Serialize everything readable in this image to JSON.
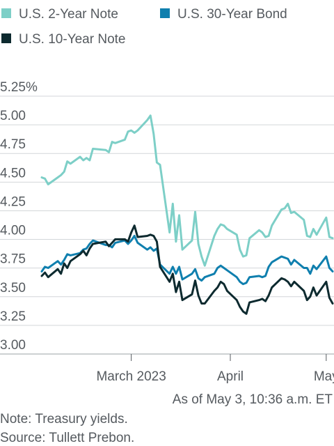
{
  "chart_data": {
    "type": "line",
    "title": "",
    "xlabel": "",
    "ylabel": "",
    "ylim": [
      3.0,
      5.25
    ],
    "yticks": [
      3.0,
      3.25,
      3.5,
      3.75,
      4.0,
      4.25,
      4.5,
      4.75,
      5.0,
      5.25
    ],
    "ytick_labels": [
      "3.00",
      "3.25",
      "3.50",
      "3.75",
      "4.00",
      "4.25",
      "4.50",
      "4.75",
      "5.00",
      "5.25%"
    ],
    "xlim": [
      "2023-02-01",
      "2023-05-03"
    ],
    "xticks": [
      {
        "date": "2023-03-01",
        "label": "March 2023"
      },
      {
        "date": "2023-04-01",
        "label": "April"
      },
      {
        "date": "2023-05-01",
        "label": "May"
      }
    ],
    "grid": true,
    "legend_position": "top",
    "series": [
      {
        "name": "U.S. 2-Year Note",
        "color": "#7dcfc7",
        "x": [
          "2023-02-01",
          "2023-02-02",
          "2023-02-03",
          "2023-02-06",
          "2023-02-07",
          "2023-02-08",
          "2023-02-09",
          "2023-02-10",
          "2023-02-13",
          "2023-02-14",
          "2023-02-15",
          "2023-02-16",
          "2023-02-17",
          "2023-02-21",
          "2023-02-22",
          "2023-02-23",
          "2023-02-24",
          "2023-02-27",
          "2023-02-28",
          "2023-03-01",
          "2023-03-02",
          "2023-03-03",
          "2023-03-06",
          "2023-03-07",
          "2023-03-08",
          "2023-03-09",
          "2023-03-10",
          "2023-03-13",
          "2023-03-14",
          "2023-03-15",
          "2023-03-16",
          "2023-03-17",
          "2023-03-20",
          "2023-03-21",
          "2023-03-22",
          "2023-03-23",
          "2023-03-24",
          "2023-03-27",
          "2023-03-28",
          "2023-03-29",
          "2023-03-30",
          "2023-03-31",
          "2023-04-03",
          "2023-04-04",
          "2023-04-05",
          "2023-04-06",
          "2023-04-07",
          "2023-04-10",
          "2023-04-11",
          "2023-04-12",
          "2023-04-13",
          "2023-04-14",
          "2023-04-17",
          "2023-04-18",
          "2023-04-19",
          "2023-04-20",
          "2023-04-21",
          "2023-04-24",
          "2023-04-25",
          "2023-04-26",
          "2023-04-27",
          "2023-04-28",
          "2023-05-01",
          "2023-05-02",
          "2023-05-03"
        ],
        "values": [
          4.48,
          4.47,
          4.42,
          4.48,
          4.5,
          4.53,
          4.62,
          4.6,
          4.66,
          4.63,
          4.65,
          4.63,
          4.73,
          4.72,
          4.7,
          4.79,
          4.78,
          4.81,
          4.88,
          4.89,
          4.87,
          4.89,
          4.98,
          5.02,
          4.86,
          4.61,
          4.59,
          4.0,
          4.25,
          3.92,
          4.15,
          3.85,
          3.93,
          4.18,
          3.9,
          3.79,
          3.71,
          3.97,
          4.03,
          4.07,
          4.06,
          4.03,
          3.98,
          3.85,
          3.79,
          3.8,
          3.95,
          4.02,
          4.0,
          3.96,
          3.97,
          4.06,
          4.2,
          4.21,
          4.25,
          4.17,
          4.18,
          4.11,
          3.97,
          3.96,
          4.03,
          3.98,
          4.13,
          3.96,
          3.95
        ]
      },
      {
        "name": "U.S. 30-Year Bond",
        "color": "#0f7fae",
        "x": [
          "2023-02-01",
          "2023-02-02",
          "2023-02-03",
          "2023-02-06",
          "2023-02-07",
          "2023-02-08",
          "2023-02-09",
          "2023-02-10",
          "2023-02-13",
          "2023-02-14",
          "2023-02-15",
          "2023-02-16",
          "2023-02-17",
          "2023-02-21",
          "2023-02-22",
          "2023-02-23",
          "2023-02-24",
          "2023-02-27",
          "2023-02-28",
          "2023-03-01",
          "2023-03-02",
          "2023-03-03",
          "2023-03-06",
          "2023-03-07",
          "2023-03-08",
          "2023-03-09",
          "2023-03-10",
          "2023-03-13",
          "2023-03-14",
          "2023-03-15",
          "2023-03-16",
          "2023-03-17",
          "2023-03-20",
          "2023-03-21",
          "2023-03-22",
          "2023-03-23",
          "2023-03-24",
          "2023-03-27",
          "2023-03-28",
          "2023-03-29",
          "2023-03-30",
          "2023-03-31",
          "2023-04-03",
          "2023-04-04",
          "2023-04-05",
          "2023-04-06",
          "2023-04-07",
          "2023-04-10",
          "2023-04-11",
          "2023-04-12",
          "2023-04-13",
          "2023-04-14",
          "2023-04-17",
          "2023-04-18",
          "2023-04-19",
          "2023-04-20",
          "2023-04-21",
          "2023-04-24",
          "2023-04-25",
          "2023-04-26",
          "2023-04-27",
          "2023-04-28",
          "2023-05-01",
          "2023-05-02",
          "2023-05-03"
        ],
        "values": [
          3.66,
          3.7,
          3.69,
          3.75,
          3.72,
          3.76,
          3.81,
          3.8,
          3.82,
          3.85,
          3.86,
          3.9,
          3.93,
          3.89,
          3.89,
          3.87,
          3.91,
          3.93,
          3.9,
          3.93,
          3.97,
          3.91,
          3.85,
          3.87,
          3.84,
          3.86,
          3.72,
          3.64,
          3.7,
          3.64,
          3.7,
          3.59,
          3.64,
          3.68,
          3.6,
          3.58,
          3.61,
          3.64,
          3.69,
          3.71,
          3.69,
          3.67,
          3.61,
          3.57,
          3.55,
          3.56,
          3.61,
          3.62,
          3.61,
          3.62,
          3.7,
          3.74,
          3.79,
          3.78,
          3.77,
          3.72,
          3.76,
          3.69,
          3.69,
          3.64,
          3.71,
          3.68,
          3.79,
          3.69,
          3.66
        ]
      },
      {
        "name": "U.S. 10-Year Note",
        "color": "#0d2a2f",
        "x": [
          "2023-02-01",
          "2023-02-02",
          "2023-02-03",
          "2023-02-06",
          "2023-02-07",
          "2023-02-08",
          "2023-02-09",
          "2023-02-10",
          "2023-02-13",
          "2023-02-14",
          "2023-02-15",
          "2023-02-16",
          "2023-02-17",
          "2023-02-21",
          "2023-02-22",
          "2023-02-23",
          "2023-02-24",
          "2023-02-27",
          "2023-02-28",
          "2023-03-01",
          "2023-03-02",
          "2023-03-03",
          "2023-03-06",
          "2023-03-07",
          "2023-03-08",
          "2023-03-09",
          "2023-03-10",
          "2023-03-13",
          "2023-03-14",
          "2023-03-15",
          "2023-03-16",
          "2023-03-17",
          "2023-03-20",
          "2023-03-21",
          "2023-03-22",
          "2023-03-23",
          "2023-03-24",
          "2023-03-27",
          "2023-03-28",
          "2023-03-29",
          "2023-03-30",
          "2023-03-31",
          "2023-04-03",
          "2023-04-04",
          "2023-04-05",
          "2023-04-06",
          "2023-04-07",
          "2023-04-10",
          "2023-04-11",
          "2023-04-12",
          "2023-04-13",
          "2023-04-14",
          "2023-04-17",
          "2023-04-18",
          "2023-04-19",
          "2023-04-20",
          "2023-04-21",
          "2023-04-24",
          "2023-04-25",
          "2023-04-26",
          "2023-04-27",
          "2023-04-28",
          "2023-05-01",
          "2023-05-02",
          "2023-05-03"
        ],
        "values": [
          3.62,
          3.65,
          3.61,
          3.68,
          3.64,
          3.73,
          3.69,
          3.75,
          3.81,
          3.84,
          3.8,
          3.86,
          3.9,
          3.92,
          3.88,
          3.91,
          3.94,
          3.94,
          3.92,
          4.0,
          4.06,
          3.96,
          3.97,
          3.98,
          3.97,
          3.92,
          3.7,
          3.57,
          3.64,
          3.48,
          3.57,
          3.41,
          3.46,
          3.58,
          3.45,
          3.38,
          3.38,
          3.49,
          3.52,
          3.57,
          3.55,
          3.49,
          3.41,
          3.35,
          3.31,
          3.29,
          3.39,
          3.41,
          3.42,
          3.4,
          3.45,
          3.52,
          3.6,
          3.59,
          3.57,
          3.53,
          3.57,
          3.49,
          3.41,
          3.44,
          3.52,
          3.45,
          3.57,
          3.43,
          3.38
        ]
      }
    ],
    "annotations": [
      {
        "text": "As of May 3, 10:36 a.m. ET"
      }
    ],
    "notes": [
      "Note: Treasury yields.",
      "Source: Tullett Prebon."
    ]
  }
}
